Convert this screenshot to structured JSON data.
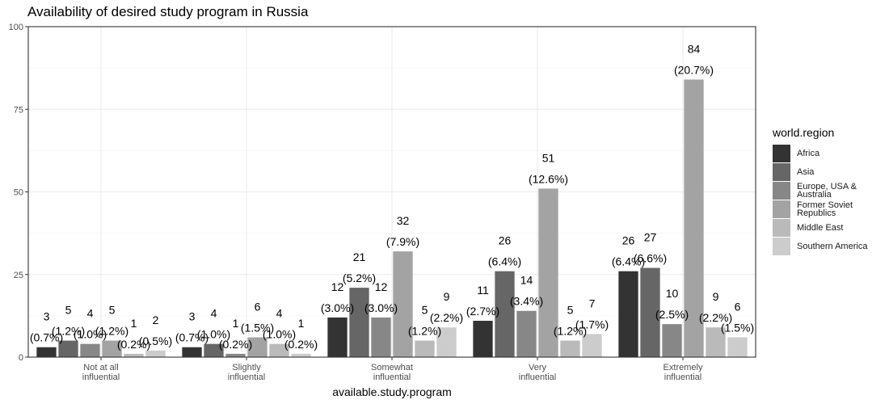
{
  "chart_data": {
    "type": "bar",
    "title": "Availability of desired study program in Russia",
    "xlabel": "available.study.program",
    "ylabel": "",
    "ylim": [
      0,
      100
    ],
    "yticks": [
      0,
      25,
      50,
      75,
      100
    ],
    "grid": true,
    "legend_title": "world.region",
    "legend_position": "right",
    "categories": [
      "Not at all influential",
      "Slightly influential",
      "Somewhat influential",
      "Very influential",
      "Extremely influential"
    ],
    "category_lines": [
      [
        "Not at all",
        "influential"
      ],
      [
        "Slightly",
        "influential"
      ],
      [
        "Somewhat",
        "influential"
      ],
      [
        "Very",
        "influential"
      ],
      [
        "Extremely",
        "influential"
      ]
    ],
    "series": [
      {
        "name": "Africa",
        "legend_lines": [
          "Africa"
        ],
        "color": "#333333",
        "values": [
          3,
          3,
          12,
          11,
          26
        ],
        "pct_labels": [
          "(0.7%)",
          "(0.7%)",
          "(3.0%)",
          "(2.7%)",
          "(6.4%)"
        ]
      },
      {
        "name": "Asia",
        "legend_lines": [
          "Asia"
        ],
        "color": "#666666",
        "values": [
          5,
          4,
          21,
          26,
          27
        ],
        "pct_labels": [
          "(1.2%)",
          "(1.0%)",
          "(5.2%)",
          "(6.4%)",
          "(6.6%)"
        ]
      },
      {
        "name": "Europe, USA & Australia",
        "legend_lines": [
          "Europe, USA &",
          "Australia"
        ],
        "color": "#878787",
        "values": [
          4,
          1,
          12,
          14,
          10
        ],
        "pct_labels": [
          "(1.0%)",
          "(0.2%)",
          "(3.0%)",
          "(3.4%)",
          "(2.5%)"
        ]
      },
      {
        "name": "Former Soviet Republics",
        "legend_lines": [
          "Former Soviet",
          "Republics"
        ],
        "color": "#a3a3a3",
        "values": [
          5,
          6,
          32,
          51,
          84
        ],
        "pct_labels": [
          "(1.2%)",
          "(1.5%)",
          "(7.9%)",
          "(12.6%)",
          "(20.7%)"
        ]
      },
      {
        "name": "Middle East",
        "legend_lines": [
          "Middle East"
        ],
        "color": "#bababa",
        "values": [
          1,
          4,
          5,
          5,
          9
        ],
        "pct_labels": [
          "(0.2%)",
          "(1.0%)",
          "(1.2%)",
          "(1.2%)",
          "(2.2%)"
        ]
      },
      {
        "name": "Southern America",
        "legend_lines": [
          "Southern America"
        ],
        "color": "#cccccc",
        "values": [
          2,
          1,
          9,
          7,
          6
        ],
        "pct_labels": [
          "(0.5%)",
          "(0.2%)",
          "(2.2%)",
          "(1.7%)",
          "(1.5%)"
        ]
      }
    ]
  }
}
